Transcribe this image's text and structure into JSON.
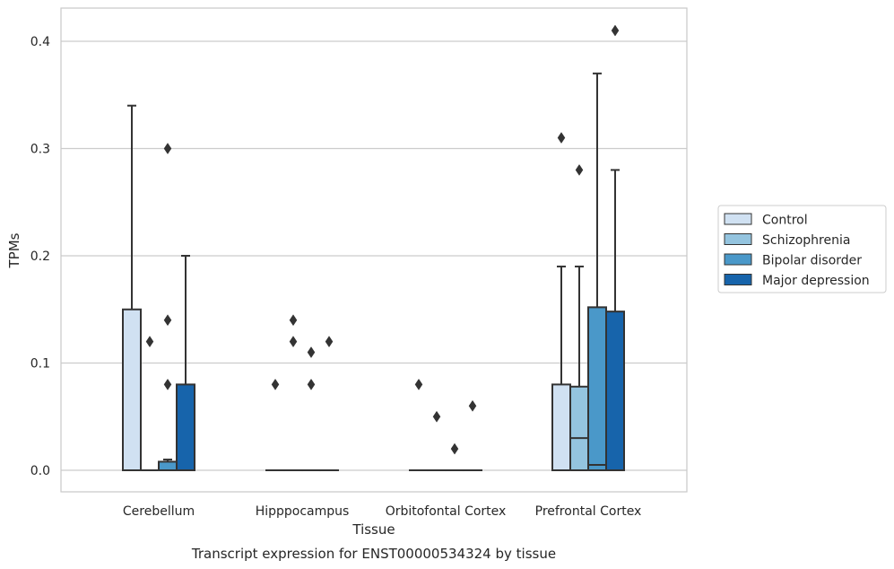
{
  "caption": "Transcript expression for ENST00000534324 by tissue",
  "colors": {
    "Control": "#d0e1f2",
    "Schizophrenia": "#94c4df",
    "Bipolar disorder": "#4a98c9",
    "Major depression": "#1764ab",
    "stroke": "#333333",
    "grid": "#cccccc",
    "frame": "#c8c8c8"
  },
  "chart_data": {
    "type": "box",
    "xlabel": "Tissue",
    "ylabel": "TPMs",
    "ylim": [
      -0.02,
      0.432
    ],
    "yticks": [
      0.0,
      0.1,
      0.2,
      0.3,
      0.4
    ],
    "ytick_labels": [
      "0.0",
      "0.1",
      "0.2",
      "0.3",
      "0.4"
    ],
    "grid": "horizontal",
    "legend_position": "right",
    "categories": [
      "Cerebellum",
      "Hipppocampus",
      "Orbitofontal Cortex",
      "Prefrontal Cortex"
    ],
    "series": [
      {
        "name": "Control",
        "boxes": [
          {
            "q1": 0.0,
            "median": 0.0,
            "q3": 0.15,
            "whislo": 0.0,
            "whishi": 0.34,
            "fliers": []
          },
          {
            "q1": 0.0,
            "median": 0.0,
            "q3": 0.0,
            "whislo": 0.0,
            "whishi": 0.0,
            "fliers": [
              0.08
            ]
          },
          {
            "q1": 0.0,
            "median": 0.0,
            "q3": 0.0,
            "whislo": 0.0,
            "whishi": 0.0,
            "fliers": [
              0.08
            ]
          },
          {
            "q1": 0.0,
            "median": 0.0,
            "q3": 0.08,
            "whislo": 0.0,
            "whishi": 0.19,
            "fliers": [
              0.31
            ]
          }
        ]
      },
      {
        "name": "Schizophrenia",
        "boxes": [
          {
            "q1": 0.0,
            "median": 0.0,
            "q3": 0.0,
            "whislo": 0.0,
            "whishi": 0.0,
            "fliers": [
              0.12
            ]
          },
          {
            "q1": 0.0,
            "median": 0.0,
            "q3": 0.0,
            "whislo": 0.0,
            "whishi": 0.0,
            "fliers": [
              0.12,
              0.14
            ]
          },
          {
            "q1": 0.0,
            "median": 0.0,
            "q3": 0.0,
            "whislo": 0.0,
            "whishi": 0.0,
            "fliers": [
              0.05
            ]
          },
          {
            "q1": 0.0,
            "median": 0.03,
            "q3": 0.078,
            "whislo": 0.0,
            "whishi": 0.19,
            "fliers": [
              0.28
            ]
          }
        ]
      },
      {
        "name": "Bipolar disorder",
        "boxes": [
          {
            "q1": 0.0,
            "median": 0.0,
            "q3": 0.008,
            "whislo": 0.0,
            "whishi": 0.01,
            "fliers": [
              0.08,
              0.14,
              0.3
            ]
          },
          {
            "q1": 0.0,
            "median": 0.0,
            "q3": 0.0,
            "whislo": 0.0,
            "whishi": 0.0,
            "fliers": [
              0.08,
              0.11
            ]
          },
          {
            "q1": 0.0,
            "median": 0.0,
            "q3": 0.0,
            "whislo": 0.0,
            "whishi": 0.0,
            "fliers": [
              0.02
            ]
          },
          {
            "q1": 0.0,
            "median": 0.005,
            "q3": 0.152,
            "whislo": 0.0,
            "whishi": 0.37,
            "fliers": []
          }
        ]
      },
      {
        "name": "Major depression",
        "boxes": [
          {
            "q1": 0.0,
            "median": 0.0,
            "q3": 0.08,
            "whislo": 0.0,
            "whishi": 0.2,
            "fliers": []
          },
          {
            "q1": 0.0,
            "median": 0.0,
            "q3": 0.0,
            "whislo": 0.0,
            "whishi": 0.0,
            "fliers": [
              0.12
            ]
          },
          {
            "q1": 0.0,
            "median": 0.0,
            "q3": 0.0,
            "whislo": 0.0,
            "whishi": 0.0,
            "fliers": [
              0.06
            ]
          },
          {
            "q1": 0.0,
            "median": 0.0,
            "q3": 0.148,
            "whislo": 0.0,
            "whishi": 0.28,
            "fliers": [
              0.41
            ]
          }
        ]
      }
    ]
  }
}
